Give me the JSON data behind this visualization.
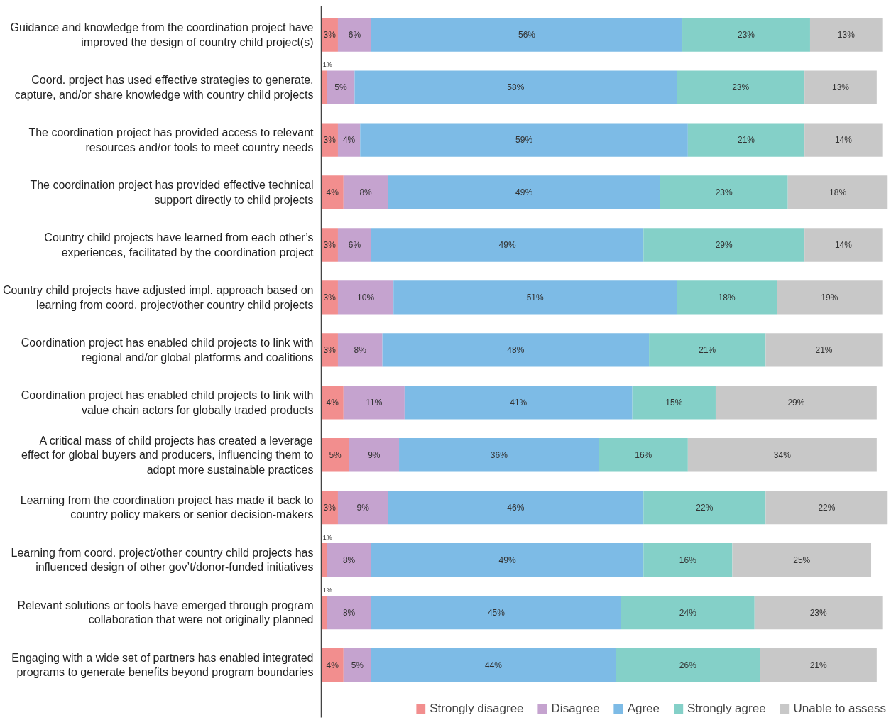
{
  "chart_data": {
    "type": "bar",
    "orientation": "horizontal",
    "stacked": true,
    "legend": "bottom",
    "grid": false,
    "categories": [
      "Guidance and knowledge from the coordination project have improved the design of country child project(s)",
      "Coord. project has used effective strategies to generate, capture, and/or share knowledge with country child projects",
      "The coordination project has provided access to relevant resources and/or tools to meet country needs",
      "The coordination project has provided effective technical support directly to child projects",
      "Country child projects have learned from each other’s experiences, facilitated by the coordination project",
      "Country child projects have adjusted impl. approach based on learning from coord. project/other country child projects",
      "Coordination project has enabled child projects to link with regional and/or global platforms and coalitions",
      "Coordination project has enabled child projects to link with value chain actors for globally traded products",
      "A critical mass of child projects has created a leverage effect for global buyers and producers, influencing them to adopt more sustainable practices",
      "Learning from the coordination project has made it back to country policy makers or senior decision-makers",
      "Learning from coord. project/other country child projects has influenced design of other gov’t/donor-funded initiatives",
      "Relevant solutions or tools have emerged through program collaboration that were not originally planned",
      "Engaging with a wide set of partners has enabled integrated programs to generate benefits beyond program boundaries"
    ],
    "series": [
      {
        "name": "Strongly disagree",
        "color": "#f28e8e",
        "values": [
          3,
          1,
          3,
          4,
          3,
          3,
          3,
          4,
          5,
          3,
          1,
          1,
          4
        ],
        "value_labels": [
          "3%",
          "1%",
          "3%",
          "4%",
          "3%",
          "3%",
          "3%",
          "4%",
          "5%",
          "3%",
          "1%",
          "1%",
          "4%"
        ]
      },
      {
        "name": "Disagree",
        "color": "#c5a3cf",
        "values": [
          6,
          5,
          4,
          8,
          6,
          10,
          8,
          11,
          9,
          9,
          8,
          8,
          5
        ],
        "value_labels": [
          "6%",
          "5%",
          "4%",
          "8%",
          "6%",
          "10%",
          "8%",
          "11%",
          "9%",
          "9%",
          "8%",
          "8%",
          "5%"
        ]
      },
      {
        "name": "Agree",
        "color": "#7dbbe6",
        "values": [
          56,
          58,
          59,
          49,
          49,
          51,
          48,
          41,
          36,
          46,
          49,
          45,
          44
        ],
        "value_labels": [
          "56%",
          "58%",
          "59%",
          "49%",
          "49%",
          "51%",
          "48%",
          "41%",
          "36%",
          "46%",
          "49%",
          "45%",
          "44%"
        ]
      },
      {
        "name": "Strongly agree",
        "color": "#84d0c8",
        "values": [
          23,
          23,
          21,
          23,
          29,
          18,
          21,
          15,
          16,
          22,
          16,
          24,
          26
        ],
        "value_labels": [
          "23%",
          "23%",
          "21%",
          "23%",
          "29%",
          "18%",
          "21%",
          "15%",
          "16%",
          "22%",
          "16%",
          "24%",
          "26%"
        ]
      },
      {
        "name": "Unable to assess",
        "color": "#c8c8c8",
        "values": [
          13,
          13,
          14,
          18,
          14,
          19,
          21,
          29,
          34,
          22,
          25,
          23,
          21
        ],
        "value_labels": [
          "13%",
          "13%",
          "14%",
          "18%",
          "14%",
          "19%",
          "21%",
          "29%",
          "34%",
          "22%",
          "25%",
          "23%",
          "21%"
        ]
      }
    ]
  }
}
